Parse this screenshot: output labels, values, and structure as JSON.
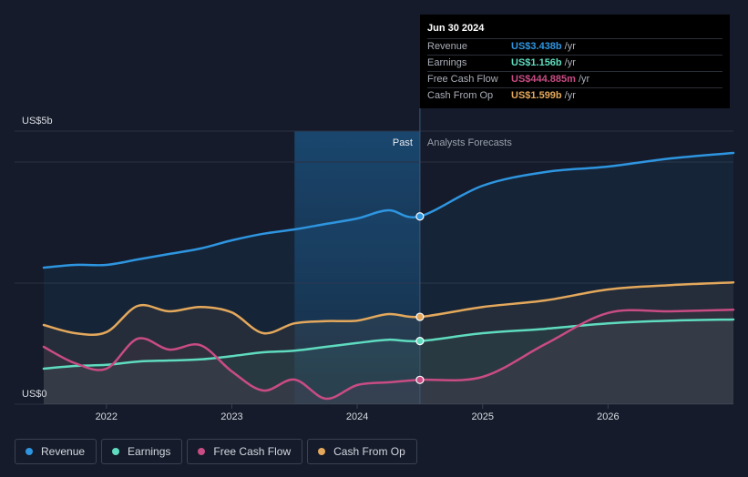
{
  "chart_data": {
    "type": "line",
    "y_unit_label_top": "US$5b",
    "y_unit_label_bottom": "US$0",
    "ylim": [
      0,
      5
    ],
    "xlim": [
      2021.5,
      2027.0
    ],
    "x_ticks": [
      {
        "value": 2022,
        "label": "2022"
      },
      {
        "value": 2023,
        "label": "2023"
      },
      {
        "value": 2024,
        "label": "2024"
      },
      {
        "value": 2025,
        "label": "2025"
      },
      {
        "value": 2026,
        "label": "2026"
      }
    ],
    "past_label": "Past",
    "forecast_label": "Analysts Forecasts",
    "divider_x": 2024.5,
    "shade_start_x": 2023.5,
    "series": [
      {
        "name": "Revenue",
        "color": "#2e95e0",
        "points": [
          [
            2021.5,
            2.5
          ],
          [
            2021.75,
            2.55
          ],
          [
            2022.0,
            2.55
          ],
          [
            2022.25,
            2.65
          ],
          [
            2022.5,
            2.75
          ],
          [
            2022.75,
            2.85
          ],
          [
            2023.0,
            3.0
          ],
          [
            2023.25,
            3.12
          ],
          [
            2023.5,
            3.2
          ],
          [
            2023.75,
            3.3
          ],
          [
            2024.0,
            3.4
          ],
          [
            2024.25,
            3.55
          ],
          [
            2024.5,
            3.438
          ],
          [
            2025.0,
            4.0
          ],
          [
            2025.5,
            4.25
          ],
          [
            2026.0,
            4.35
          ],
          [
            2026.5,
            4.5
          ],
          [
            2027.0,
            4.6
          ]
        ]
      },
      {
        "name": "Earnings",
        "color": "#5fdcc0",
        "points": [
          [
            2021.5,
            0.65
          ],
          [
            2021.75,
            0.7
          ],
          [
            2022.0,
            0.72
          ],
          [
            2022.25,
            0.78
          ],
          [
            2022.5,
            0.8
          ],
          [
            2022.75,
            0.82
          ],
          [
            2023.0,
            0.88
          ],
          [
            2023.25,
            0.95
          ],
          [
            2023.5,
            0.98
          ],
          [
            2023.75,
            1.05
          ],
          [
            2024.0,
            1.12
          ],
          [
            2024.25,
            1.18
          ],
          [
            2024.5,
            1.156
          ],
          [
            2025.0,
            1.3
          ],
          [
            2025.5,
            1.38
          ],
          [
            2026.0,
            1.48
          ],
          [
            2026.5,
            1.53
          ],
          [
            2027.0,
            1.55
          ]
        ]
      },
      {
        "name": "Free Cash Flow",
        "color": "#c94c84",
        "points": [
          [
            2021.5,
            1.05
          ],
          [
            2021.75,
            0.75
          ],
          [
            2022.0,
            0.65
          ],
          [
            2022.25,
            1.2
          ],
          [
            2022.5,
            1.0
          ],
          [
            2022.75,
            1.08
          ],
          [
            2023.0,
            0.6
          ],
          [
            2023.25,
            0.25
          ],
          [
            2023.5,
            0.45
          ],
          [
            2023.75,
            0.1
          ],
          [
            2024.0,
            0.35
          ],
          [
            2024.25,
            0.4
          ],
          [
            2024.4449,
            0.5
          ],
          [
            2024.5,
            0.445
          ],
          [
            2025.0,
            0.5
          ],
          [
            2025.5,
            1.1
          ],
          [
            2026.0,
            1.67
          ],
          [
            2026.5,
            1.7
          ],
          [
            2027.0,
            1.73
          ]
        ]
      },
      {
        "name": "Cash From Op",
        "color": "#e4a85c",
        "points": [
          [
            2021.5,
            1.45
          ],
          [
            2021.75,
            1.3
          ],
          [
            2022.0,
            1.32
          ],
          [
            2022.25,
            1.8
          ],
          [
            2022.5,
            1.7
          ],
          [
            2022.75,
            1.78
          ],
          [
            2023.0,
            1.68
          ],
          [
            2023.25,
            1.3
          ],
          [
            2023.5,
            1.48
          ],
          [
            2023.75,
            1.52
          ],
          [
            2024.0,
            1.53
          ],
          [
            2024.25,
            1.65
          ],
          [
            2024.5,
            1.599
          ],
          [
            2025.0,
            1.78
          ],
          [
            2025.5,
            1.9
          ],
          [
            2026.0,
            2.1
          ],
          [
            2026.5,
            2.18
          ],
          [
            2027.0,
            2.23
          ]
        ]
      }
    ]
  },
  "tooltip": {
    "date": "Jun 30 2024",
    "rows": [
      {
        "name": "Revenue",
        "value": "US$3.438b",
        "unit": "/yr",
        "color": "#2e95e0"
      },
      {
        "name": "Earnings",
        "value": "US$1.156b",
        "unit": "/yr",
        "color": "#5fdcc0"
      },
      {
        "name": "Free Cash Flow",
        "value": "US$444.885m",
        "unit": "/yr",
        "color": "#c94c84"
      },
      {
        "name": "Cash From Op",
        "value": "US$1.599b",
        "unit": "/yr",
        "color": "#e4a85c"
      }
    ]
  },
  "legend": [
    {
      "label": "Revenue",
      "color": "#2e95e0"
    },
    {
      "label": "Earnings",
      "color": "#5fdcc0"
    },
    {
      "label": "Free Cash Flow",
      "color": "#c94c84"
    },
    {
      "label": "Cash From Op",
      "color": "#e4a85c"
    }
  ]
}
